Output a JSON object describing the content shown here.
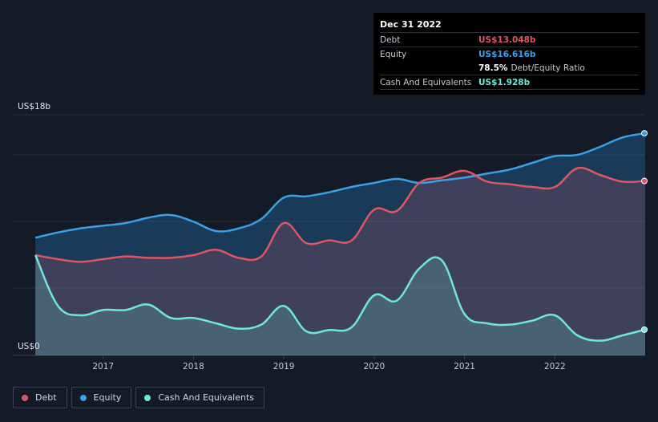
{
  "tooltip": {
    "date": "Dec 31 2022",
    "rows": [
      {
        "label": "Debt",
        "value": "US$13.048b",
        "color": "#e05561"
      },
      {
        "label": "Equity",
        "value": "US$16.616b",
        "color": "#3aa0e8"
      },
      {
        "label": "",
        "value": "78.5%",
        "suffix": "Debt/Equity Ratio",
        "color": "#ffffff"
      },
      {
        "label": "Cash And Equivalents",
        "value": "US$1.928b",
        "color": "#6ee8d4"
      }
    ]
  },
  "legend": [
    {
      "label": "Debt",
      "color": "#e05561"
    },
    {
      "label": "Equity",
      "color": "#3aa0e8"
    },
    {
      "label": "Cash And Equivalents",
      "color": "#6ee8d4"
    }
  ],
  "chart_data": {
    "type": "area",
    "y_top_label": "US$18b",
    "y_bottom_label": "US$0",
    "ylim": [
      0,
      18
    ],
    "xlim": [
      2016.0,
      2023.0
    ],
    "x_ticks": [
      2017,
      2018,
      2019,
      2020,
      2021,
      2022
    ],
    "x_tick_labels": [
      "2017",
      "2018",
      "2019",
      "2020",
      "2021",
      "2022"
    ],
    "grid": true,
    "series": [
      {
        "name": "Equity",
        "color": "#3aa0e8",
        "x": [
          2016.25,
          2016.5,
          2016.75,
          2017.0,
          2017.25,
          2017.5,
          2017.75,
          2018.0,
          2018.25,
          2018.5,
          2018.75,
          2019.0,
          2019.25,
          2019.5,
          2019.75,
          2020.0,
          2020.25,
          2020.5,
          2020.75,
          2021.0,
          2021.25,
          2021.5,
          2021.75,
          2022.0,
          2022.25,
          2022.5,
          2022.75,
          2023.0
        ],
        "values": [
          8.8,
          9.2,
          9.5,
          9.7,
          9.9,
          10.3,
          10.5,
          10.0,
          9.3,
          9.5,
          10.2,
          11.8,
          11.9,
          12.2,
          12.6,
          12.9,
          13.2,
          12.9,
          13.1,
          13.3,
          13.6,
          13.9,
          14.4,
          14.9,
          15.0,
          15.6,
          16.3,
          16.616
        ]
      },
      {
        "name": "Debt",
        "color": "#e05561",
        "x": [
          2016.25,
          2016.5,
          2016.75,
          2017.0,
          2017.25,
          2017.5,
          2017.75,
          2018.0,
          2018.25,
          2018.5,
          2018.75,
          2019.0,
          2019.25,
          2019.5,
          2019.75,
          2020.0,
          2020.25,
          2020.5,
          2020.75,
          2021.0,
          2021.25,
          2021.5,
          2021.75,
          2022.0,
          2022.25,
          2022.5,
          2022.75,
          2023.0
        ],
        "values": [
          7.5,
          7.2,
          7.0,
          7.2,
          7.4,
          7.3,
          7.3,
          7.5,
          7.9,
          7.3,
          7.4,
          9.9,
          8.4,
          8.6,
          8.6,
          10.9,
          10.8,
          12.9,
          13.3,
          13.8,
          13.0,
          12.8,
          12.6,
          12.6,
          14.0,
          13.5,
          13.0,
          13.048
        ]
      },
      {
        "name": "Cash And Equivalents",
        "color": "#6ee8d4",
        "x": [
          2016.25,
          2016.5,
          2016.75,
          2017.0,
          2017.25,
          2017.5,
          2017.75,
          2018.0,
          2018.25,
          2018.5,
          2018.75,
          2019.0,
          2019.25,
          2019.5,
          2019.75,
          2020.0,
          2020.25,
          2020.5,
          2020.75,
          2021.0,
          2021.25,
          2021.5,
          2021.75,
          2022.0,
          2022.25,
          2022.5,
          2022.75,
          2023.0
        ],
        "values": [
          7.5,
          3.7,
          3.0,
          3.4,
          3.4,
          3.8,
          2.8,
          2.8,
          2.4,
          2.0,
          2.3,
          3.7,
          1.8,
          1.9,
          2.1,
          4.5,
          4.1,
          6.5,
          7.1,
          3.1,
          2.4,
          2.3,
          2.6,
          3.0,
          1.5,
          1.1,
          1.5,
          1.928
        ]
      }
    ]
  }
}
